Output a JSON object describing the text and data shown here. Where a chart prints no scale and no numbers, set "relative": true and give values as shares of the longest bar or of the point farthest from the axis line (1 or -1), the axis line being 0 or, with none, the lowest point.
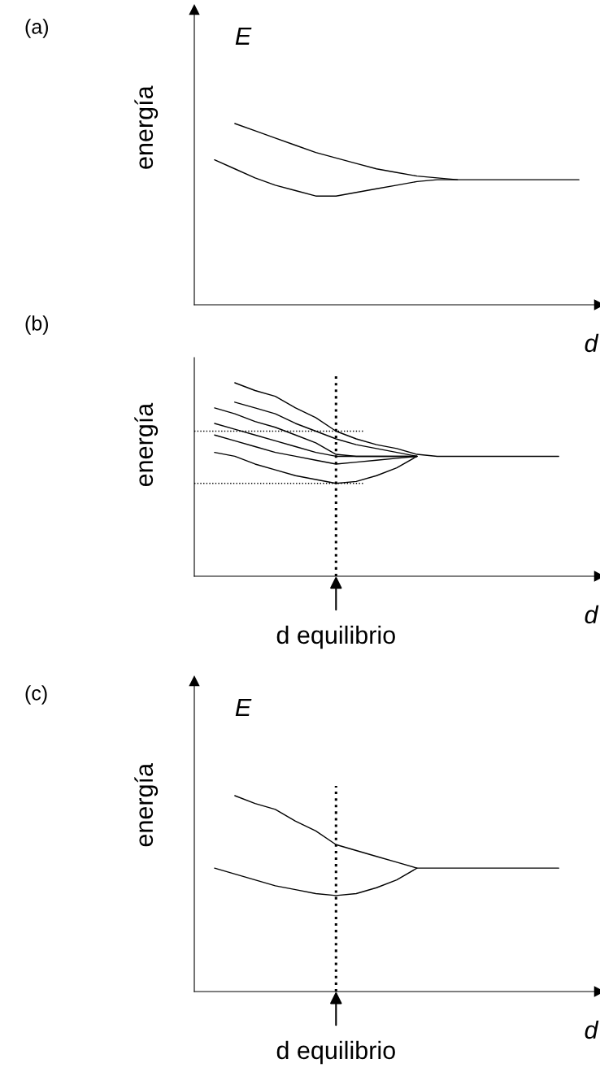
{
  "chart_data": [
    {
      "type": "line",
      "xlabel": "d",
      "ylabel": "energía",
      "annotations": [
        "(a)",
        "E"
      ],
      "relative": true,
      "grid": false,
      "marker": "none",
      "line_style": "solid",
      "categories": [
        null,
        null,
        null,
        null,
        null,
        null,
        null,
        null,
        null,
        null,
        null,
        null,
        null,
        null,
        null,
        null,
        null,
        null,
        null,
        null,
        null
      ],
      "series": [
        {
          "color": "#000000",
          "values": [
            null,
            null,
            1.0,
            0.96,
            0.92,
            0.88,
            0.84,
            0.81,
            0.78,
            0.75,
            0.73,
            0.71,
            0.7,
            0.69,
            0.69,
            0.69,
            0.69,
            0.69,
            0.69,
            0.69,
            null
          ]
        },
        {
          "color": "#000000",
          "values": [
            null,
            0.8,
            0.75,
            0.7,
            0.66,
            0.63,
            0.6,
            0.6,
            0.62,
            0.64,
            0.66,
            0.68,
            0.69,
            0.69,
            null,
            null,
            null,
            null,
            null,
            null,
            null
          ]
        }
      ]
    },
    {
      "type": "line",
      "xlabel": "d",
      "ylabel": "energía",
      "annotations": [
        "(b)",
        {
          "text": "d equilibrio"
        }
      ],
      "relative": true,
      "grid": false,
      "marker": "none",
      "line_style": "solid",
      "categories": [
        null,
        null,
        null,
        null,
        null,
        null,
        null,
        null,
        null,
        null,
        null,
        null,
        null,
        null,
        null,
        null,
        null,
        null,
        null,
        null,
        null
      ],
      "ref_lines": [
        {
          "axis": "y",
          "value": 0.75,
          "line_style": "dotted",
          "color": "#000000"
        },
        {
          "axis": "y",
          "value": 0.48,
          "line_style": "dotted",
          "color": "#000000"
        }
      ],
      "series": [
        {
          "color": "#000000",
          "values": [
            null,
            null,
            1.0,
            0.96,
            0.93,
            0.87,
            0.82,
            0.75,
            0.71,
            0.68,
            0.66,
            0.63,
            0.62,
            0.62,
            0.62,
            0.62,
            0.62,
            0.62,
            0.62,
            null,
            null
          ]
        },
        {
          "color": "#000000",
          "values": [
            null,
            null,
            0.9,
            0.87,
            0.84,
            0.79,
            0.75,
            0.71,
            0.68,
            0.66,
            0.64,
            0.62,
            null,
            null,
            null,
            null,
            null,
            null,
            null,
            null,
            null
          ]
        },
        {
          "color": "#000000",
          "values": [
            null,
            0.87,
            0.84,
            0.8,
            0.77,
            0.73,
            0.69,
            0.63,
            0.62,
            0.62,
            0.62,
            0.62,
            null,
            null,
            null,
            null,
            null,
            null,
            null,
            null,
            null
          ]
        },
        {
          "color": "#000000",
          "values": [
            null,
            0.79,
            0.76,
            0.73,
            0.7,
            0.67,
            0.64,
            0.62,
            0.62,
            0.62,
            0.62,
            0.62,
            null,
            null,
            null,
            null,
            null,
            null,
            null,
            null,
            null
          ]
        },
        {
          "color": "#000000",
          "values": [
            null,
            0.73,
            0.7,
            0.67,
            0.64,
            0.62,
            0.6,
            0.58,
            0.59,
            0.6,
            0.61,
            0.62,
            null,
            null,
            null,
            null,
            null,
            null,
            null,
            null,
            null
          ]
        },
        {
          "color": "#000000",
          "values": [
            null,
            0.64,
            0.62,
            0.58,
            0.55,
            0.52,
            0.5,
            0.48,
            0.49,
            0.52,
            0.56,
            0.62,
            null,
            null,
            null,
            null,
            null,
            null,
            null,
            null,
            null
          ]
        }
      ]
    },
    {
      "type": "line",
      "xlabel": "d",
      "ylabel": "energía",
      "annotations": [
        "(c)",
        "E",
        {
          "text": "d equilibrio"
        }
      ],
      "relative": true,
      "grid": false,
      "marker": "none",
      "line_style": "solid",
      "categories": [
        null,
        null,
        null,
        null,
        null,
        null,
        null,
        null,
        null,
        null,
        null,
        null,
        null,
        null,
        null,
        null,
        null,
        null,
        null,
        null,
        null
      ],
      "series": [
        {
          "color": "#000000",
          "values": [
            null,
            null,
            1.0,
            0.96,
            0.93,
            0.87,
            0.82,
            0.75,
            0.72,
            0.69,
            0.66,
            0.63,
            0.63,
            0.63,
            0.63,
            0.63,
            0.63,
            0.63,
            0.63,
            null,
            null
          ]
        },
        {
          "color": "#000000",
          "values": [
            null,
            0.63,
            0.6,
            0.57,
            0.54,
            0.52,
            0.5,
            0.49,
            0.5,
            0.53,
            0.57,
            0.63,
            null,
            null,
            null,
            null,
            null,
            null,
            null,
            null,
            null
          ]
        }
      ]
    }
  ]
}
